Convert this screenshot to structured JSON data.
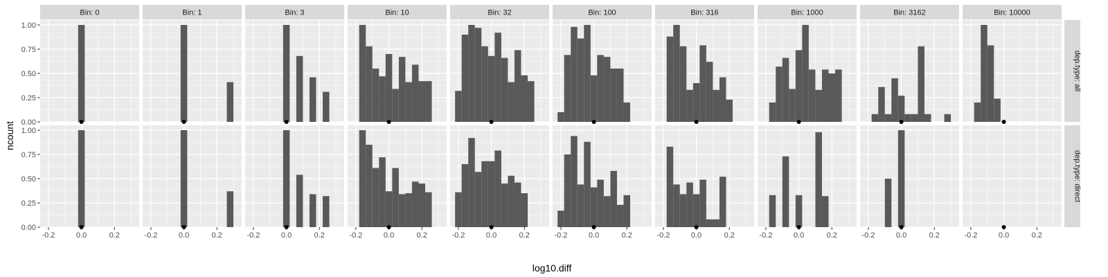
{
  "chart_data": {
    "type": "histogram-facet",
    "xlabel": "log10.diff",
    "ylabel": "ncount",
    "xlim": [
      -0.25,
      0.35
    ],
    "ylim": [
      0,
      1.05
    ],
    "x_ticks": [
      -0.2,
      0.0,
      0.2
    ],
    "x_tick_labels": [
      "-0.2",
      "0.0",
      "0.2"
    ],
    "y_ticks": [
      0,
      0.25,
      0.5,
      0.75,
      1.0
    ],
    "y_tick_labels": [
      "0.00",
      "0.25",
      "0.50",
      "0.75",
      "1.00"
    ],
    "bin_width": 0.04,
    "first_bin_left": -0.22,
    "column_labels": [
      "Bin: 0",
      "Bin: 1",
      "Bin: 3",
      "Bin: 10",
      "Bin: 32",
      "Bin: 100",
      "Bin: 316",
      "Bin: 1000",
      "Bin: 3162",
      "Bin: 10000"
    ],
    "row_labels": [
      "dep.type: all",
      "dep.type: direct"
    ],
    "marker_x": 0.0,
    "marker_y": 0.0,
    "colors": {
      "panel_bg": "#ebebeb",
      "strip_bg": "#d9d9d9",
      "grid_major": "#ffffff",
      "bar_fill": "#595959",
      "marker": "#000000"
    },
    "panels": [
      [
        [
          0,
          0,
          0,
          0,
          0,
          1.0,
          0,
          0,
          0,
          0,
          0,
          0,
          0
        ],
        [
          0,
          0,
          0,
          0,
          0,
          1.0,
          0,
          0,
          0,
          0,
          0,
          0,
          0.41
        ],
        [
          0,
          0,
          0,
          0,
          0,
          1.0,
          0,
          0.68,
          0,
          0.46,
          0,
          0.31,
          0
        ],
        [
          0,
          1.0,
          0.78,
          0.55,
          0.47,
          0.7,
          0.34,
          0.67,
          0.41,
          0.59,
          0.42,
          0.42,
          0
        ],
        [
          0.32,
          0.9,
          1.0,
          0.97,
          0.78,
          0.68,
          0.92,
          0.66,
          0.41,
          0.74,
          0.48,
          0.42,
          0
        ],
        [
          0.1,
          0.69,
          0.98,
          0.86,
          1.0,
          0.48,
          0.69,
          0.67,
          0.55,
          0.55,
          0.2,
          0,
          0
        ],
        [
          0,
          0.88,
          1.0,
          0.78,
          0.33,
          0.4,
          0.79,
          0.62,
          0.33,
          0.46,
          0.23,
          0,
          0
        ],
        [
          0,
          0.2,
          0.57,
          0.66,
          0.34,
          0.74,
          1.0,
          0.54,
          0.33,
          0.54,
          0.5,
          0.54,
          0
        ],
        [
          0,
          0.08,
          0.36,
          0.08,
          0.45,
          0.27,
          0.08,
          0.08,
          0.78,
          0.08,
          0,
          0,
          0.08
        ],
        [
          0,
          0.2,
          1.0,
          0.79,
          0.24,
          0,
          0,
          0,
          0,
          0,
          0,
          0,
          0
        ]
      ],
      [
        [
          0,
          0,
          0,
          0,
          0,
          1.0,
          0,
          0,
          0,
          0,
          0,
          0,
          0
        ],
        [
          0,
          0,
          0,
          0,
          0,
          1.0,
          0,
          0,
          0,
          0,
          0,
          0,
          0.37
        ],
        [
          0,
          0,
          0,
          0,
          0,
          1.0,
          0,
          0.54,
          0,
          0.34,
          0,
          0.32,
          0
        ],
        [
          0,
          1.0,
          0.85,
          0.61,
          0.72,
          0.37,
          0.61,
          0.34,
          0.35,
          0.47,
          0.45,
          0.36,
          0
        ],
        [
          0.36,
          0.65,
          0.92,
          0.57,
          0.68,
          0.68,
          0.79,
          0.45,
          0.53,
          0.46,
          0.35,
          0,
          0
        ],
        [
          0.17,
          0.75,
          0.94,
          0.44,
          0.88,
          0.41,
          0.49,
          0.32,
          0.58,
          0.23,
          0.33,
          0,
          0
        ],
        [
          0,
          0.83,
          0.44,
          0.34,
          0.46,
          0.34,
          0.49,
          0.08,
          0.08,
          0.52,
          0,
          0,
          0
        ],
        [
          0,
          0.33,
          0,
          0.73,
          0,
          0.33,
          0,
          0,
          0.98,
          0.32,
          0,
          0,
          0
        ],
        [
          0,
          0,
          0,
          0.5,
          0,
          1.0,
          0,
          0,
          0,
          0,
          0,
          0,
          0
        ],
        [
          0,
          0,
          0,
          0,
          0,
          0,
          0,
          0,
          0,
          0,
          0,
          0,
          0
        ]
      ]
    ]
  }
}
